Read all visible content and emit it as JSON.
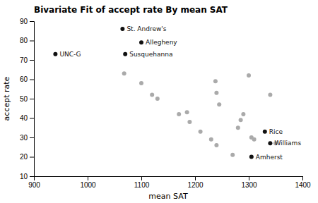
{
  "chart_data": {
    "type": "scatter",
    "title": "Bivariate Fit of accept rate By mean SAT",
    "x_label": "mean SAT",
    "y_label": "accept rate",
    "xlim": [
      900,
      1400
    ],
    "ylim": [
      10,
      90
    ],
    "xticks": [
      900,
      1000,
      1100,
      1200,
      1300,
      1400
    ],
    "yticks": [
      10,
      20,
      30,
      40,
      50,
      60,
      70,
      80,
      90
    ],
    "grid": false,
    "series": [
      {
        "color": "#aaaaaa",
        "x": [
          1068,
          1100,
          1120,
          1130,
          1170,
          1185,
          1190,
          1210,
          1230,
          1240,
          1238,
          1240,
          1245,
          1270,
          1280,
          1285,
          1290,
          1300,
          1305,
          1310,
          1340,
          1350
        ],
        "values": [
          63,
          58,
          52,
          50,
          42,
          43,
          38,
          33,
          29,
          26,
          59,
          53,
          47,
          21,
          35,
          39,
          42,
          62,
          30,
          29,
          52,
          27
        ]
      },
      {
        "color": "#111111",
        "x": [
          940,
          1065,
          1100,
          1070,
          1330,
          1340,
          1305
        ],
        "values": [
          73,
          86,
          79,
          73,
          33,
          27,
          20
        ],
        "labels": [
          "UNC-G",
          "St. Andrew's",
          "Allegheny",
          "Susquehanna",
          "Rice",
          "Williams",
          "Amherst"
        ]
      }
    ]
  }
}
